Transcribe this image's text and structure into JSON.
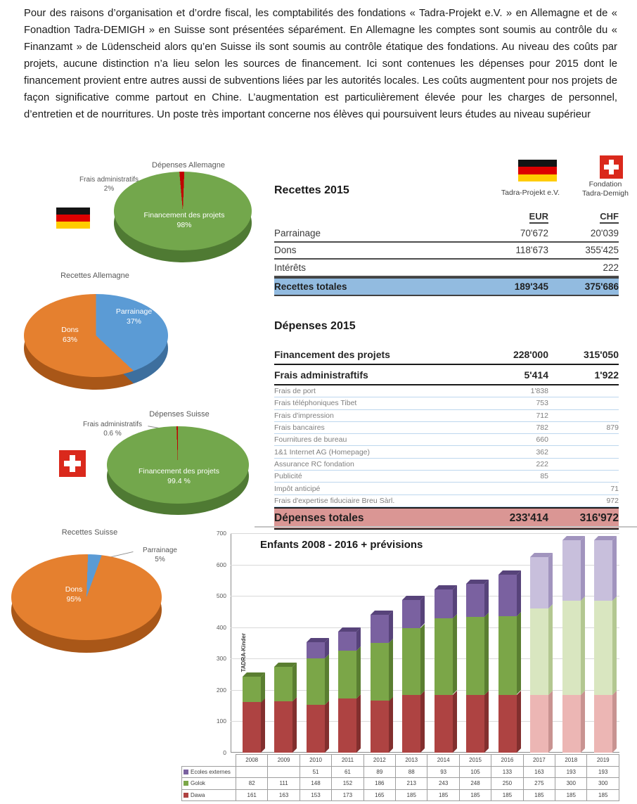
{
  "intro_paragraph": "Pour des raisons d’organisation et d’ordre fiscal, les comptabilités des fondations « Tadra-Projekt e.V. » en Allemagne et de « Fonadtion Tadra-DEMIGH » en Suisse sont présentées séparément. En Allemagne les comptes sont soumis au contrôle du « Finanzamt » de Lüdenscheid alors qu’en Suisse ils sont soumis au contrôle étatique des fondations. Au niveau des coûts par projets, aucune distinction n’a lieu selon les sources de financement. Ici sont contenues les dépenses pour 2015 dont le financement provient entre autres aussi de subventions liées par les autorités locales. Les coûts augmentent pour nos projets de façon significative comme partout en Chine. L’augmentation est particulièrement élevée pour les charges de personnel, d’entretien et de nourritures. Un poste très important concerne nos élèves qui poursuivent leurs études au niveau supérieur",
  "recettes_table": {
    "title": "Recettes 2015",
    "org_de": "Tadra-Projekt e.V.",
    "org_ch_line1": "Fondation",
    "org_ch_line2": "Tadra-Demigh",
    "unit_eur": "EUR",
    "unit_chf": "CHF",
    "rows": [
      {
        "label": "Parrainage",
        "eur": "70'672",
        "chf": "20'039"
      },
      {
        "label": "Dons",
        "eur": "118'673",
        "chf": "355'425"
      },
      {
        "label": "Intérêts",
        "eur": "",
        "chf": "222"
      }
    ],
    "total": {
      "label": "Recettes totales",
      "eur": "189'345",
      "chf": "375'686"
    },
    "total_bg": "#92BBE0"
  },
  "depenses_table": {
    "title": "Dépenses 2015",
    "main_rows": [
      {
        "label": "Financement des projets",
        "eur": "228'000",
        "chf": "315'050"
      },
      {
        "label": "Frais administraftifs",
        "eur": "5'414",
        "chf": "1'922"
      }
    ],
    "detail_rows": [
      {
        "label": "Frais de port",
        "eur": "1'838",
        "chf": ""
      },
      {
        "label": "Frais téléphoniques Tibet",
        "eur": "753",
        "chf": ""
      },
      {
        "label": "Frais d'impression",
        "eur": "712",
        "chf": ""
      },
      {
        "label": "Frais bancaires",
        "eur": "782",
        "chf": "879"
      },
      {
        "label": "Fournitures de bureau",
        "eur": "660",
        "chf": ""
      },
      {
        "label": "1&1 Internet AG (Homepage)",
        "eur": "362",
        "chf": ""
      },
      {
        "label": "Assurance RC fondation",
        "eur": "222",
        "chf": ""
      },
      {
        "label": "Publicité",
        "eur": "85",
        "chf": ""
      },
      {
        "label": "Impôt anticipé",
        "eur": "",
        "chf": "71"
      },
      {
        "label": "Frais d'expertise fiduciaire Breu Sàrl.",
        "eur": "",
        "chf": "972"
      }
    ],
    "total": {
      "label": "Dépenses totales",
      "eur": "233'414",
      "chf": "316'972"
    },
    "total_bg": "#DA9694"
  },
  "chart_data": [
    {
      "type": "pie",
      "title": "Dépenses Allemagne",
      "labels": [
        "Financement des projets",
        "Frais administratifs"
      ],
      "values": [
        98,
        2
      ],
      "display": [
        "98%",
        "2%"
      ],
      "colors": [
        "#73A74C",
        "#C00000"
      ],
      "colors_dark": [
        "#4F7A33",
        "#7E0000"
      ],
      "start_angle": -5
    },
    {
      "type": "pie",
      "title": "Recettes Allemagne",
      "labels": [
        "Dons",
        "Parrainage"
      ],
      "values": [
        63,
        37
      ],
      "display": [
        "63%",
        "37%"
      ],
      "colors": [
        "#E5802F",
        "#5B9BD5"
      ],
      "colors_dark": [
        "#A95718",
        "#3D6F9E"
      ],
      "start_angle": 0
    },
    {
      "type": "pie",
      "title": "Dépenses  Suisse",
      "labels": [
        "Financement des projets",
        "Frais administratifs"
      ],
      "values": [
        99.4,
        0.6
      ],
      "display": [
        "99.4 %",
        "0.6 %"
      ],
      "colors": [
        "#73A74C",
        "#C00000"
      ],
      "colors_dark": [
        "#4F7A33",
        "#7E0000"
      ],
      "start_angle": -2
    },
    {
      "type": "pie",
      "title": "Recettes Suisse",
      "labels": [
        "Dons",
        "Parrainage"
      ],
      "values": [
        95,
        5
      ],
      "display": [
        "95%",
        "5%"
      ],
      "colors": [
        "#E5802F",
        "#5B9BD5"
      ],
      "colors_dark": [
        "#A95718",
        "#3D6F9E"
      ],
      "start_angle": 2
    },
    {
      "type": "bar",
      "stacked": true,
      "title": "Enfants 2008 - 2016 + prévisions",
      "ylabel": "TADRA-Kinder",
      "ylim": [
        0,
        700
      ],
      "grid": true,
      "legend_position": "table-left",
      "categories": [
        "2008",
        "2009",
        "2010",
        "2011",
        "2012",
        "2013",
        "2014",
        "2015",
        "2016",
        "2017",
        "2018",
        "2019"
      ],
      "forecast_start_index": 9,
      "series": [
        {
          "name": "Ecoles externes",
          "color": "#7A61A0",
          "color_dark": "#57437A",
          "color_light": "#C8BFDC",
          "color_light_dark": "#A194BE",
          "values": [
            null,
            null,
            51,
            61,
            89,
            88,
            93,
            105,
            133,
            163,
            193,
            193
          ]
        },
        {
          "name": "Golok",
          "color": "#7BA648",
          "color_dark": "#5A7E31",
          "color_light": "#D9E6C0",
          "color_light_dark": "#B3C791",
          "values": [
            82,
            111,
            148,
            152,
            186,
            213,
            243,
            248,
            250,
            275,
            300,
            300
          ]
        },
        {
          "name": "Dawa",
          "color": "#AE4342",
          "color_dark": "#822F2E",
          "color_light": "#ECB6B4",
          "color_light_dark": "#C89391",
          "values": [
            161,
            163,
            153,
            173,
            165,
            185,
            185,
            185,
            185,
            185,
            185,
            185
          ]
        }
      ]
    }
  ]
}
